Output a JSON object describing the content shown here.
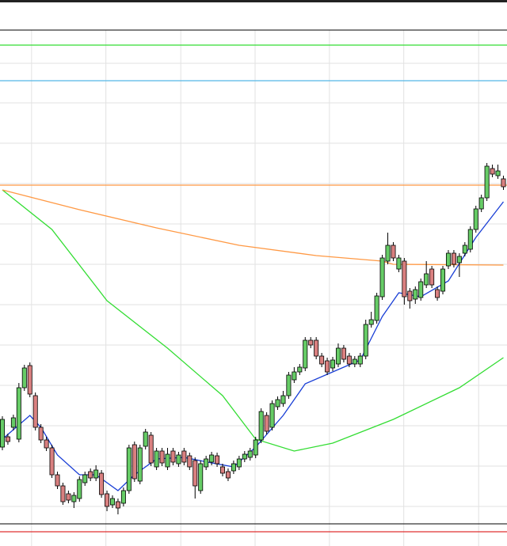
{
  "chart_data": {
    "type": "candlestick",
    "xlim": [
      -0.43,
      91.65
    ],
    "ylim": [
      28,
      652
    ],
    "grid": true,
    "xticks": [
      5.3,
      18.8,
      32.4,
      45.9,
      59.4,
      72.9,
      86.5
    ],
    "yticks": [
      610,
      560,
      509,
      458,
      407,
      356,
      305,
      254,
      203,
      152,
      101,
      50
    ],
    "up_color": "#66cc66",
    "down_color": "#d98080",
    "open": [
      125,
      138,
      150,
      135,
      200,
      228,
      190,
      150,
      134,
      124,
      90,
      76,
      66,
      56,
      60,
      80,
      94,
      86,
      92,
      66,
      52,
      56,
      54,
      70,
      128,
      82,
      126,
      140,
      100,
      120,
      100,
      120,
      104,
      120,
      114,
      108,
      70,
      100,
      106,
      114,
      100,
      94,
      95,
      100,
      110,
      112,
      115,
      134,
      165,
      150,
      176,
      180,
      190,
      210,
      220,
      225,
      260,
      260,
      240,
      234,
      225,
      230,
      250,
      240,
      230,
      230,
      240,
      280,
      285,
      315,
      360,
      380,
      350,
      360,
      322,
      312,
      314,
      330,
      350,
      324,
      322,
      354,
      370,
      358,
      370,
      375,
      400,
      426,
      440,
      477,
      468,
      464
    ],
    "high": [
      164,
      142,
      166,
      206,
      229,
      232,
      194,
      154,
      138,
      128,
      94,
      80,
      70,
      68,
      88,
      94,
      98,
      102,
      96,
      70,
      64,
      60,
      74,
      128,
      132,
      128,
      148,
      144,
      124,
      124,
      124,
      124,
      119,
      124,
      118,
      112,
      108,
      114,
      119,
      118,
      104,
      98,
      108,
      114,
      120,
      124,
      138,
      174,
      169,
      184,
      189,
      196,
      220,
      226,
      230,
      264,
      264,
      264,
      244,
      238,
      239,
      256,
      254,
      244,
      240,
      244,
      286,
      296,
      320,
      368,
      396,
      384,
      368,
      364,
      326,
      328,
      338,
      360,
      354,
      328,
      354,
      374,
      374,
      370,
      384,
      404,
      430,
      444,
      484,
      482,
      482,
      468
    ],
    "low": [
      121,
      128,
      146,
      131,
      196,
      188,
      146,
      130,
      120,
      86,
      72,
      52,
      54,
      48,
      56,
      76,
      82,
      82,
      61,
      44,
      48,
      40,
      50,
      66,
      81,
      78,
      122,
      101,
      96,
      101,
      96,
      102,
      100,
      102,
      96,
      60,
      66,
      96,
      102,
      100,
      88,
      82,
      91,
      96,
      106,
      108,
      111,
      130,
      141,
      146,
      172,
      176,
      186,
      206,
      216,
      221,
      250,
      236,
      226,
      216,
      221,
      226,
      232,
      226,
      226,
      226,
      236,
      276,
      281,
      311,
      356,
      360,
      346,
      305,
      300,
      306,
      310,
      326,
      326,
      310,
      318,
      350,
      352,
      340,
      366,
      371,
      396,
      422,
      436,
      466,
      464,
      450
    ],
    "close": [
      160,
      132,
      162,
      200,
      225,
      192,
      150,
      134,
      124,
      90,
      76,
      56,
      58,
      64,
      84,
      90,
      86,
      96,
      65,
      50,
      60,
      48,
      70,
      124,
      85,
      124,
      144,
      105,
      120,
      105,
      116,
      106,
      115,
      106,
      100,
      76,
      104,
      110,
      115,
      104,
      92,
      86,
      104,
      110,
      116,
      120,
      134,
      170,
      145,
      180,
      185,
      190,
      216,
      220,
      226,
      260,
      254,
      240,
      230,
      220,
      235,
      250,
      236,
      230,
      236,
      240,
      280,
      286,
      316,
      364,
      380,
      364,
      364,
      315,
      310,
      324,
      334,
      344,
      330,
      314,
      350,
      370,
      356,
      366,
      380,
      400,
      426,
      440,
      480,
      470,
      474,
      454
    ],
    "lines": [
      {
        "color": "#33dd33",
        "x": [
          0,
          9,
          19,
          30,
          40,
          46,
          53,
          60,
          71,
          83,
          91
        ],
        "values": [
          450,
          400,
          310,
          250,
          190,
          135,
          120,
          130,
          160,
          200,
          238
        ]
      },
      {
        "color": "#ff9944",
        "x": [
          0,
          14,
          28,
          43,
          57,
          69,
          71,
          91
        ],
        "values": [
          450,
          425,
          402,
          380,
          367,
          360,
          356,
          355
        ]
      },
      {
        "color": "#1a3fd6",
        "x": [
          0,
          5,
          7,
          10,
          14,
          17,
          21,
          24,
          28,
          33,
          38,
          42,
          46,
          51,
          55,
          60,
          65,
          69,
          72,
          76,
          81,
          86,
          91
        ],
        "values": [
          135,
          165,
          150,
          115,
          90,
          90,
          70,
          90,
          110,
          112,
          105,
          100,
          125,
          165,
          205,
          220,
          235,
          290,
          320,
          315,
          335,
          390,
          435
        ]
      }
    ],
    "levels": [
      {
        "value": 633,
        "color": "#33dd33"
      },
      {
        "value": 588,
        "color": "#55b8e6"
      },
      {
        "value": 456,
        "color": "#ff9944"
      },
      {
        "value": 18,
        "color": "#e03030"
      }
    ]
  }
}
